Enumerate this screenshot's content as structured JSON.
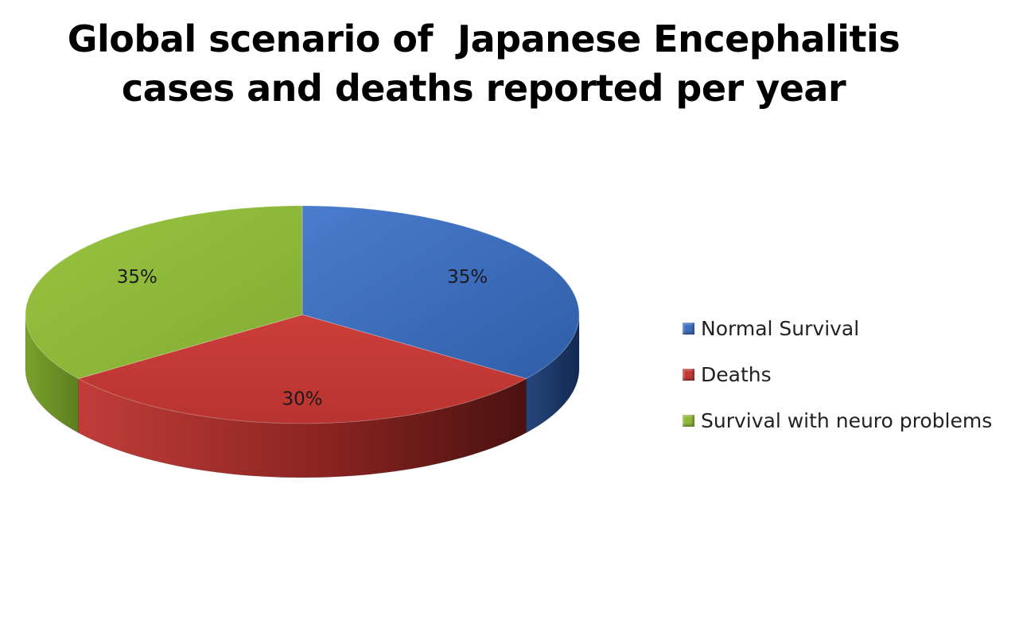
{
  "chart_data": {
    "type": "pie",
    "title_lines": [
      "Global scenario of  Japanese Encephalitis",
      "cases and deaths reported per year"
    ],
    "slices": [
      {
        "name": "Normal Survival",
        "value": 35,
        "label": "35%",
        "color": "#3d6fc2"
      },
      {
        "name": "Deaths",
        "value": 30,
        "label": "30%",
        "color": "#c33a37"
      },
      {
        "name": "Survival with neuro problems",
        "value": 35,
        "label": "35%",
        "color": "#8db83a"
      }
    ],
    "legend_position": "right",
    "style": "3d"
  }
}
